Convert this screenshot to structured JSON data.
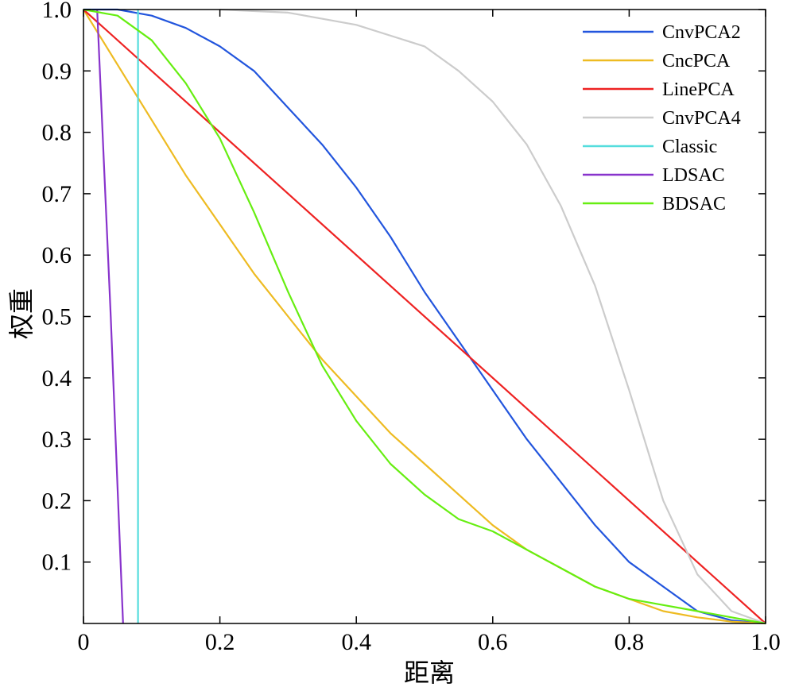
{
  "chart_data": {
    "type": "line",
    "xlabel": "距离",
    "ylabel": "权重",
    "xlim": [
      0,
      1.0
    ],
    "ylim": [
      0,
      1.0
    ],
    "x_ticks": [
      "0",
      "0.2",
      "0.4",
      "0.6",
      "0.8",
      "1.0"
    ],
    "y_ticks": [
      "0.1",
      "0.2",
      "0.3",
      "0.4",
      "0.5",
      "0.6",
      "0.7",
      "0.8",
      "0.9",
      "1.0"
    ],
    "legend_position": "top-right",
    "grid": false,
    "series": [
      {
        "name": "CnvPCA2",
        "color": "#2255dd",
        "x": [
          0,
          0.05,
          0.1,
          0.15,
          0.2,
          0.25,
          0.3,
          0.35,
          0.4,
          0.45,
          0.5,
          0.55,
          0.6,
          0.65,
          0.7,
          0.75,
          0.8,
          0.85,
          0.9,
          0.95,
          1.0
        ],
        "y": [
          1.0,
          1.0,
          0.99,
          0.97,
          0.94,
          0.9,
          0.84,
          0.78,
          0.71,
          0.63,
          0.54,
          0.46,
          0.38,
          0.3,
          0.23,
          0.16,
          0.1,
          0.06,
          0.02,
          0.005,
          0.0
        ]
      },
      {
        "name": "CncPCA",
        "color": "#eebb22",
        "x": [
          0,
          0.05,
          0.1,
          0.15,
          0.2,
          0.25,
          0.3,
          0.35,
          0.4,
          0.45,
          0.5,
          0.55,
          0.6,
          0.65,
          0.7,
          0.75,
          0.8,
          0.85,
          0.9,
          0.95,
          1.0
        ],
        "y": [
          1.0,
          0.91,
          0.82,
          0.73,
          0.65,
          0.57,
          0.5,
          0.43,
          0.37,
          0.31,
          0.26,
          0.21,
          0.16,
          0.12,
          0.09,
          0.06,
          0.04,
          0.02,
          0.01,
          0.003,
          0.0
        ]
      },
      {
        "name": "LinePCA",
        "color": "#ee2222",
        "x": [
          0,
          1.0
        ],
        "y": [
          1.0,
          0.0
        ]
      },
      {
        "name": "CnvPCA4",
        "color": "#cccccc",
        "x": [
          0.2,
          0.3,
          0.4,
          0.5,
          0.55,
          0.6,
          0.65,
          0.7,
          0.75,
          0.8,
          0.85,
          0.9,
          0.95,
          1.0
        ],
        "y": [
          1.0,
          0.995,
          0.975,
          0.94,
          0.9,
          0.85,
          0.78,
          0.68,
          0.55,
          0.38,
          0.2,
          0.08,
          0.02,
          0.0
        ]
      },
      {
        "name": "Classic",
        "color": "#55dddd",
        "x": [
          0.08,
          0.08
        ],
        "y": [
          1.0,
          0.0
        ]
      },
      {
        "name": "LDSAC",
        "color": "#8833cc",
        "x": [
          0.02,
          0.03,
          0.04,
          0.05,
          0.058
        ],
        "y": [
          1.0,
          0.75,
          0.5,
          0.22,
          0.0
        ]
      },
      {
        "name": "BDSAC",
        "color": "#66ee11",
        "x": [
          0,
          0.05,
          0.1,
          0.15,
          0.2,
          0.25,
          0.3,
          0.35,
          0.4,
          0.45,
          0.5,
          0.55,
          0.6,
          0.65,
          0.7,
          0.75,
          0.8,
          0.85,
          0.9,
          0.95,
          1.0
        ],
        "y": [
          1.0,
          0.99,
          0.95,
          0.88,
          0.79,
          0.67,
          0.54,
          0.42,
          0.33,
          0.26,
          0.21,
          0.17,
          0.15,
          0.12,
          0.09,
          0.06,
          0.04,
          0.03,
          0.02,
          0.01,
          0.0
        ]
      }
    ]
  }
}
